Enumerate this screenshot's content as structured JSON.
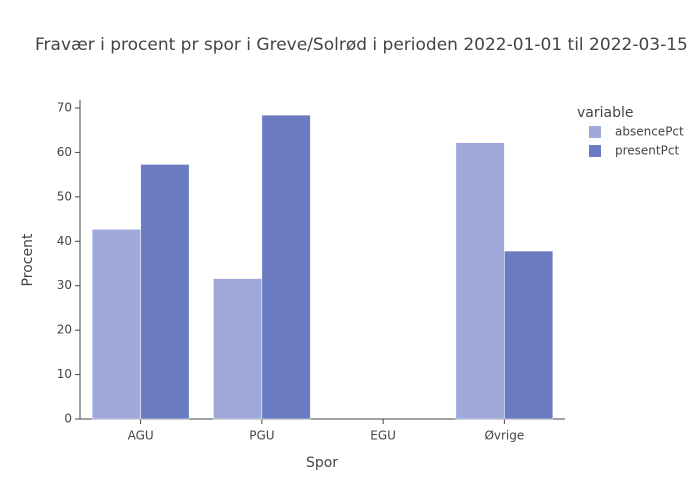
{
  "chart_data": {
    "type": "bar",
    "title": "Fravær i procent pr spor i Greve/Solrød i perioden 2022-01-01 til 2022-03-15",
    "x_label": "Spor",
    "y_label": "Procent",
    "legend_title": "variable",
    "legend": "right",
    "grid": false,
    "categories": [
      "AGU",
      "PGU",
      "EGU",
      "Øvrige"
    ],
    "series": [
      {
        "name": "absencePct",
        "color": "#9fa8da",
        "values": [
          42.7,
          31.6,
          0,
          62.2
        ]
      },
      {
        "name": "presentPct",
        "color": "#6a7bc2",
        "values": [
          57.3,
          68.4,
          0,
          37.8
        ]
      }
    ],
    "ylim": [
      0,
      71.8
    ],
    "yticks": [
      0,
      10,
      20,
      30,
      40,
      50,
      60,
      70
    ]
  }
}
